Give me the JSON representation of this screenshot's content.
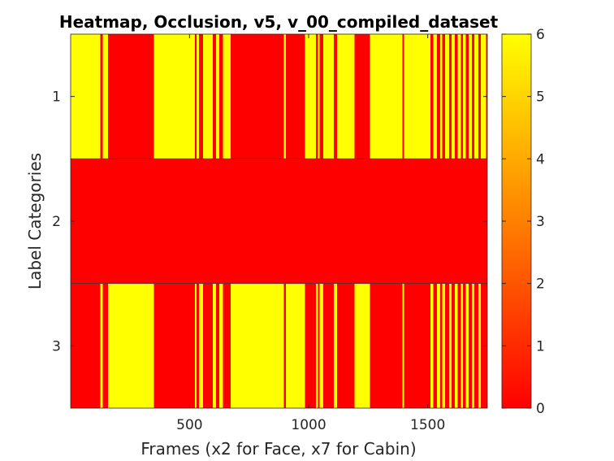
{
  "chart_data": {
    "type": "heatmap",
    "title": "Heatmap, Occlusion, v5, v_00_compiled_dataset",
    "xlabel": "Frames (x2 for Face, x7 for Cabin)",
    "ylabel": "Label Categories",
    "xlim": [
      1,
      1750
    ],
    "ylim": [
      0.5,
      3.5
    ],
    "x_ticks": [
      500,
      1000,
      1500
    ],
    "y_categories": [
      "1",
      "2",
      "3"
    ],
    "colorbar": {
      "min": 0,
      "max": 6,
      "ticks": [
        0,
        1,
        2,
        3,
        4,
        5,
        6
      ],
      "colormap": "autumn",
      "color_low": "#ff0000",
      "color_high": "#ffff00"
    },
    "rows": [
      {
        "category": "1",
        "background_value": 0,
        "segments": [
          {
            "start": 1,
            "end": 125,
            "value": 6
          },
          {
            "start": 135,
            "end": 158,
            "value": 6
          },
          {
            "start": 350,
            "end": 522,
            "value": 6
          },
          {
            "start": 530,
            "end": 540,
            "value": 6
          },
          {
            "start": 556,
            "end": 598,
            "value": 6
          },
          {
            "start": 612,
            "end": 625,
            "value": 6
          },
          {
            "start": 640,
            "end": 672,
            "value": 6
          },
          {
            "start": 896,
            "end": 904,
            "value": 6
          },
          {
            "start": 985,
            "end": 1031,
            "value": 6
          },
          {
            "start": 1040,
            "end": 1046,
            "value": 6
          },
          {
            "start": 1062,
            "end": 1106,
            "value": 6
          },
          {
            "start": 1120,
            "end": 1192,
            "value": 6
          },
          {
            "start": 1258,
            "end": 1394,
            "value": 6
          },
          {
            "start": 1400,
            "end": 1512,
            "value": 6
          },
          {
            "start": 1524,
            "end": 1538,
            "value": 6
          },
          {
            "start": 1552,
            "end": 1560,
            "value": 6
          },
          {
            "start": 1573,
            "end": 1590,
            "value": 6
          },
          {
            "start": 1600,
            "end": 1613,
            "value": 6
          },
          {
            "start": 1625,
            "end": 1639,
            "value": 6
          },
          {
            "start": 1648,
            "end": 1660,
            "value": 6
          },
          {
            "start": 1672,
            "end": 1686,
            "value": 6
          },
          {
            "start": 1696,
            "end": 1712,
            "value": 6
          },
          {
            "start": 1722,
            "end": 1745,
            "value": 6
          }
        ]
      },
      {
        "category": "2",
        "background_value": 0,
        "segments": []
      },
      {
        "category": "3",
        "background_value": 0,
        "segments": [
          {
            "start": 125,
            "end": 135,
            "value": 6
          },
          {
            "start": 158,
            "end": 350,
            "value": 6
          },
          {
            "start": 522,
            "end": 530,
            "value": 6
          },
          {
            "start": 540,
            "end": 556,
            "value": 6
          },
          {
            "start": 598,
            "end": 612,
            "value": 6
          },
          {
            "start": 625,
            "end": 640,
            "value": 6
          },
          {
            "start": 672,
            "end": 896,
            "value": 6
          },
          {
            "start": 904,
            "end": 985,
            "value": 6
          },
          {
            "start": 1031,
            "end": 1040,
            "value": 6
          },
          {
            "start": 1046,
            "end": 1062,
            "value": 6
          },
          {
            "start": 1106,
            "end": 1120,
            "value": 6
          },
          {
            "start": 1192,
            "end": 1258,
            "value": 6
          },
          {
            "start": 1394,
            "end": 1400,
            "value": 6
          },
          {
            "start": 1512,
            "end": 1524,
            "value": 6
          },
          {
            "start": 1538,
            "end": 1552,
            "value": 6
          },
          {
            "start": 1560,
            "end": 1573,
            "value": 6
          },
          {
            "start": 1590,
            "end": 1600,
            "value": 6
          },
          {
            "start": 1613,
            "end": 1625,
            "value": 6
          },
          {
            "start": 1639,
            "end": 1648,
            "value": 6
          },
          {
            "start": 1660,
            "end": 1672,
            "value": 6
          },
          {
            "start": 1686,
            "end": 1696,
            "value": 6
          },
          {
            "start": 1712,
            "end": 1722,
            "value": 6
          }
        ]
      }
    ]
  }
}
